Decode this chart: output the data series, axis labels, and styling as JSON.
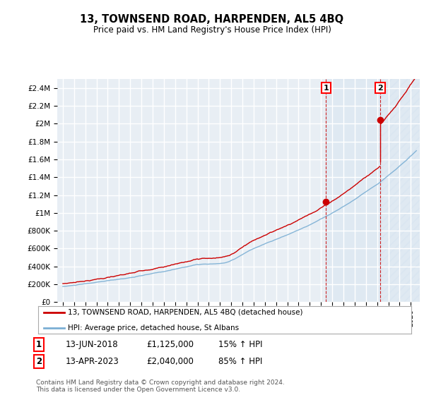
{
  "title": "13, TOWNSEND ROAD, HARPENDEN, AL5 4BQ",
  "subtitle": "Price paid vs. HM Land Registry's House Price Index (HPI)",
  "ylim": [
    0,
    2500000
  ],
  "yticks": [
    0,
    200000,
    400000,
    600000,
    800000,
    1000000,
    1200000,
    1400000,
    1600000,
    1800000,
    2000000,
    2200000,
    2400000
  ],
  "ytick_labels": [
    "£0",
    "£200K",
    "£400K",
    "£600K",
    "£800K",
    "£1M",
    "£1.2M",
    "£1.4M",
    "£1.6M",
    "£1.8M",
    "£2M",
    "£2.2M",
    "£2.4M"
  ],
  "xlim_left": 1994.5,
  "xlim_right": 2026.8,
  "sale1_date": 2018.45,
  "sale1_price": 1125000,
  "sale1_label": "1",
  "sale2_date": 2023.28,
  "sale2_price": 2040000,
  "sale2_label": "2",
  "hpi_color": "#7bafd4",
  "price_color": "#cc0000",
  "marker_color": "#cc0000",
  "vline_color": "#cc0000",
  "bg_color": "#e8eef4",
  "grid_color": "#ffffff",
  "shade_color": "#d0e0f0",
  "legend1_text": "13, TOWNSEND ROAD, HARPENDEN, AL5 4BQ (detached house)",
  "legend2_text": "HPI: Average price, detached house, St Albans",
  "table_row1": [
    "1",
    "13-JUN-2018",
    "£1,125,000",
    "15% ↑ HPI"
  ],
  "table_row2": [
    "2",
    "13-APR-2023",
    "£2,040,000",
    "85% ↑ HPI"
  ],
  "footer": "Contains HM Land Registry data © Crown copyright and database right 2024.\nThis data is licensed under the Open Government Licence v3.0."
}
